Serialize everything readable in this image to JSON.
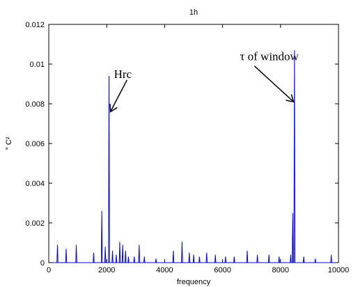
{
  "chart_data": {
    "type": "line",
    "title": "1h",
    "xlabel": "frequency",
    "ylabel": "° C²",
    "xlim": [
      0,
      10000
    ],
    "ylim": [
      0,
      0.012
    ],
    "xticks": [
      0,
      2000,
      4000,
      6000,
      8000,
      10000
    ],
    "yticks": [
      0,
      0.002,
      0.004,
      0.006,
      0.008,
      0.01,
      0.012
    ],
    "ytick_labels": [
      "0",
      "0.002",
      "0.004",
      "0.006",
      "0.008",
      "0.01",
      "0.012"
    ],
    "grid": false,
    "line_color": "#0000ff",
    "peaks": [
      {
        "x": 300,
        "y": 0.0009
      },
      {
        "x": 600,
        "y": 0.0007
      },
      {
        "x": 950,
        "y": 0.0009
      },
      {
        "x": 1550,
        "y": 0.0005
      },
      {
        "x": 1830,
        "y": 0.0026
      },
      {
        "x": 1950,
        "y": 0.0008
      },
      {
        "x": 2080,
        "y": 0.0094
      },
      {
        "x": 2200,
        "y": 0.0006
      },
      {
        "x": 2330,
        "y": 0.0004
      },
      {
        "x": 2450,
        "y": 0.00105
      },
      {
        "x": 2550,
        "y": 0.0009
      },
      {
        "x": 2650,
        "y": 0.0006
      },
      {
        "x": 2750,
        "y": 0.0003
      },
      {
        "x": 2950,
        "y": 0.0003
      },
      {
        "x": 3120,
        "y": 0.0009
      },
      {
        "x": 3300,
        "y": 0.0003
      },
      {
        "x": 3700,
        "y": 0.0002
      },
      {
        "x": 4300,
        "y": 0.0006
      },
      {
        "x": 4600,
        "y": 0.00105
      },
      {
        "x": 4850,
        "y": 0.0005
      },
      {
        "x": 5000,
        "y": 0.0004
      },
      {
        "x": 5200,
        "y": 0.0003
      },
      {
        "x": 5450,
        "y": 0.0005
      },
      {
        "x": 5750,
        "y": 0.0004
      },
      {
        "x": 6100,
        "y": 0.0003
      },
      {
        "x": 6400,
        "y": 0.0003
      },
      {
        "x": 6850,
        "y": 0.0006
      },
      {
        "x": 7200,
        "y": 0.0004
      },
      {
        "x": 7600,
        "y": 0.0004
      },
      {
        "x": 7950,
        "y": 0.0003
      },
      {
        "x": 8350,
        "y": 0.0004
      },
      {
        "x": 8420,
        "y": 0.0025
      },
      {
        "x": 8480,
        "y": 0.0107
      },
      {
        "x": 8800,
        "y": 0.0003
      },
      {
        "x": 9200,
        "y": 0.0002
      },
      {
        "x": 9750,
        "y": 0.0004
      }
    ],
    "annotations": [
      {
        "text": "Hrc",
        "text_x": 2250,
        "text_y": 0.0093,
        "arrow_from": [
          2700,
          0.0092
        ],
        "arrow_to": [
          2130,
          0.0076
        ]
      },
      {
        "text": "τ of window",
        "text_x": 6600,
        "text_y": 0.0102,
        "arrow_from": [
          7100,
          0.0099
        ],
        "arrow_to": [
          8450,
          0.0081
        ]
      }
    ]
  }
}
